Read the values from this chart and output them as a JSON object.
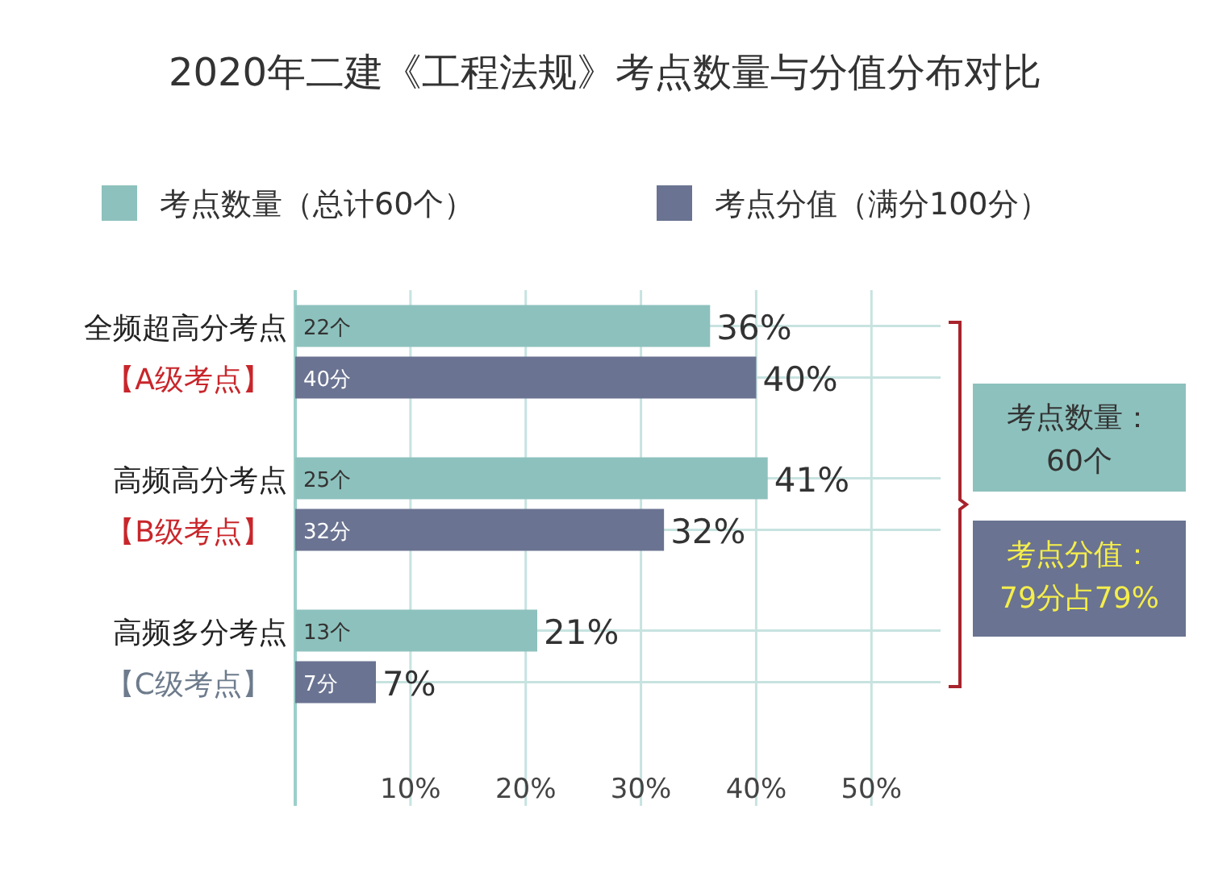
{
  "chart_data": {
    "type": "bar",
    "orientation": "horizontal",
    "title": "2020年二建《工程法规》考点数量与分值分布对比",
    "categories": [
      "全频超高分考点【A级考点】",
      "高频高分考点【B级考点】",
      "高频多分考点【C级考点】"
    ],
    "series": [
      {
        "name": "考点数量（总计60个）",
        "color": "#8dc1bd",
        "values": [
          36,
          41,
          21
        ],
        "value_labels": [
          "36%",
          "41%",
          "21%"
        ]
      },
      {
        "name": "考点分值（满分100分）",
        "color": "#6a7391",
        "values": [
          40,
          32,
          7
        ],
        "value_labels": [
          "40%",
          "32%",
          "7%"
        ]
      }
    ],
    "xlim": [
      0,
      56
    ],
    "xticks": [
      {
        "value": 10,
        "label": "10%"
      },
      {
        "value": 20,
        "label": "20%"
      },
      {
        "value": 30,
        "label": "30%"
      },
      {
        "value": 40,
        "label": "40%"
      },
      {
        "value": 50,
        "label": "50%"
      }
    ],
    "grid": "x",
    "legend": "top",
    "annotations": [
      "22个",
      "40分",
      "25个",
      "32分",
      "13个",
      "7分",
      "考点数量：\n60个",
      "考点分值：\n79分占79%"
    ]
  }
}
